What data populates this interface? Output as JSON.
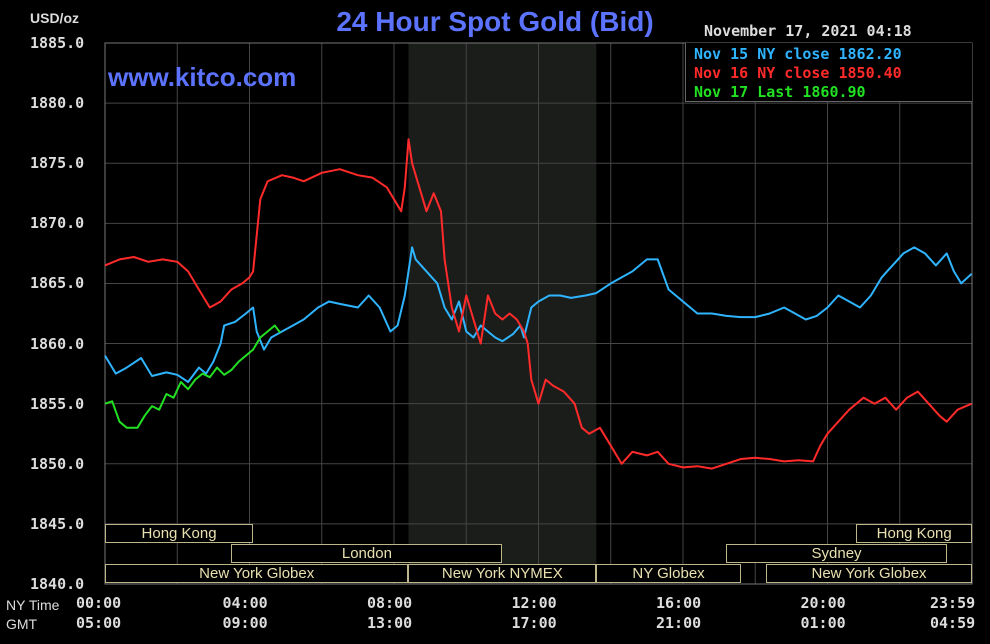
{
  "header": {
    "title": "24 Hour Spot Gold (Bid)",
    "site": "www.kitco.com",
    "unit": "USD/oz",
    "timestamp": "November 17, 2021 04:18"
  },
  "legend": {
    "items": [
      {
        "label": "Nov 15 NY close 1862.20",
        "color": "#2fb4ff"
      },
      {
        "label": "Nov 16 NY close 1850.40",
        "color": "#ff2a2a"
      },
      {
        "label": "Nov 17 Last 1860.90",
        "color": "#22e022"
      }
    ]
  },
  "axis_labels": {
    "ny_time": "NY Time",
    "gmt": "GMT"
  },
  "sessions": [
    {
      "label": "Hong Kong",
      "row": 0,
      "start": 0,
      "end": 4.1
    },
    {
      "label": "Hong Kong",
      "row": 0,
      "start": 20.8,
      "end": 24
    },
    {
      "label": "London",
      "row": 1,
      "start": 3.5,
      "end": 11
    },
    {
      "label": "Sydney",
      "row": 1,
      "start": 17.2,
      "end": 23.3
    },
    {
      "label": "New York Globex",
      "row": 2,
      "start": 0,
      "end": 8.4
    },
    {
      "label": "New York NYMEX",
      "row": 2,
      "start": 8.4,
      "end": 13.6
    },
    {
      "label": "NY Globex",
      "row": 2,
      "start": 13.6,
      "end": 17.6
    },
    {
      "label": "New York Globex",
      "row": 2,
      "start": 18.3,
      "end": 24
    }
  ],
  "chart_data": {
    "type": "line",
    "title": "24 Hour Spot Gold (Bid)",
    "ylabel": "USD/oz",
    "ylim": [
      1840,
      1885
    ],
    "yticks": [
      "1885.0",
      "1880.0",
      "1875.0",
      "1870.0",
      "1865.0",
      "1860.0",
      "1855.0",
      "1850.0",
      "1845.0",
      "1840.0"
    ],
    "x_range_hours": [
      0,
      24
    ],
    "xticks_ny": [
      "00:00",
      "04:00",
      "08:00",
      "12:00",
      "16:00",
      "20:00",
      "23:59"
    ],
    "xticks_gmt": [
      "05:00",
      "09:00",
      "13:00",
      "17:00",
      "21:00",
      "01:00",
      "04:59"
    ],
    "shaded_hours": [
      8.4,
      13.6
    ],
    "grid": true,
    "series": [
      {
        "name": "Nov 15 NY close 1862.20",
        "color": "#2fb4ff",
        "points": [
          [
            0,
            1859
          ],
          [
            0.3,
            1857.5
          ],
          [
            0.6,
            1858
          ],
          [
            1,
            1858.8
          ],
          [
            1.3,
            1857.3
          ],
          [
            1.7,
            1857.6
          ],
          [
            2,
            1857.4
          ],
          [
            2.3,
            1856.8
          ],
          [
            2.6,
            1858
          ],
          [
            2.8,
            1857.5
          ],
          [
            3,
            1858.5
          ],
          [
            3.2,
            1860
          ],
          [
            3.3,
            1861.5
          ],
          [
            3.6,
            1861.8
          ],
          [
            3.9,
            1862.5
          ],
          [
            4.1,
            1863
          ],
          [
            4.2,
            1861
          ],
          [
            4.4,
            1859.5
          ],
          [
            4.6,
            1860.5
          ],
          [
            4.9,
            1861
          ],
          [
            5.2,
            1861.5
          ],
          [
            5.5,
            1862
          ],
          [
            5.9,
            1863
          ],
          [
            6.2,
            1863.5
          ],
          [
            6.5,
            1863.3
          ],
          [
            7,
            1863
          ],
          [
            7.3,
            1864
          ],
          [
            7.6,
            1863
          ],
          [
            7.9,
            1861
          ],
          [
            8.1,
            1861.5
          ],
          [
            8.3,
            1864
          ],
          [
            8.4,
            1866
          ],
          [
            8.5,
            1868
          ],
          [
            8.6,
            1867
          ],
          [
            8.9,
            1866
          ],
          [
            9.2,
            1865
          ],
          [
            9.4,
            1863
          ],
          [
            9.6,
            1862
          ],
          [
            9.8,
            1863.5
          ],
          [
            10,
            1861
          ],
          [
            10.2,
            1860.5
          ],
          [
            10.4,
            1861.5
          ],
          [
            10.6,
            1861
          ],
          [
            10.8,
            1860.5
          ],
          [
            11,
            1860.2
          ],
          [
            11.3,
            1860.8
          ],
          [
            11.5,
            1861.5
          ],
          [
            11.6,
            1860.5
          ],
          [
            11.8,
            1863
          ],
          [
            12,
            1863.5
          ],
          [
            12.3,
            1864
          ],
          [
            12.6,
            1864
          ],
          [
            12.9,
            1863.8
          ],
          [
            13.3,
            1864
          ],
          [
            13.6,
            1864.2
          ],
          [
            14,
            1865
          ],
          [
            14.3,
            1865.5
          ],
          [
            14.6,
            1866
          ],
          [
            15,
            1867
          ],
          [
            15.3,
            1867
          ],
          [
            15.6,
            1864.5
          ],
          [
            16,
            1863.5
          ],
          [
            16.4,
            1862.5
          ],
          [
            16.8,
            1862.5
          ],
          [
            17.2,
            1862.3
          ],
          [
            17.6,
            1862.2
          ],
          [
            18,
            1862.2
          ],
          [
            18.4,
            1862.5
          ],
          [
            18.8,
            1863
          ],
          [
            19.1,
            1862.5
          ],
          [
            19.4,
            1862
          ],
          [
            19.7,
            1862.3
          ],
          [
            20,
            1863
          ],
          [
            20.3,
            1864
          ],
          [
            20.6,
            1863.5
          ],
          [
            20.9,
            1863
          ],
          [
            21.2,
            1864
          ],
          [
            21.5,
            1865.5
          ],
          [
            21.8,
            1866.5
          ],
          [
            22.1,
            1867.5
          ],
          [
            22.4,
            1868
          ],
          [
            22.7,
            1867.5
          ],
          [
            23,
            1866.5
          ],
          [
            23.3,
            1867.5
          ],
          [
            23.5,
            1866
          ],
          [
            23.7,
            1865
          ],
          [
            23.99,
            1865.8
          ]
        ]
      },
      {
        "name": "Nov 16 NY close 1850.40",
        "color": "#ff2a2a",
        "points": [
          [
            0,
            1866.5
          ],
          [
            0.4,
            1867
          ],
          [
            0.8,
            1867.2
          ],
          [
            1.2,
            1866.8
          ],
          [
            1.6,
            1867
          ],
          [
            2,
            1866.8
          ],
          [
            2.3,
            1866
          ],
          [
            2.6,
            1864.5
          ],
          [
            2.9,
            1863
          ],
          [
            3.2,
            1863.5
          ],
          [
            3.5,
            1864.5
          ],
          [
            3.8,
            1865
          ],
          [
            4,
            1865.5
          ],
          [
            4.1,
            1866
          ],
          [
            4.2,
            1869
          ],
          [
            4.3,
            1872
          ],
          [
            4.5,
            1873.5
          ],
          [
            4.9,
            1874
          ],
          [
            5.2,
            1873.8
          ],
          [
            5.5,
            1873.5
          ],
          [
            6,
            1874.2
          ],
          [
            6.5,
            1874.5
          ],
          [
            7,
            1874
          ],
          [
            7.4,
            1873.8
          ],
          [
            7.8,
            1873
          ],
          [
            8,
            1872
          ],
          [
            8.2,
            1871
          ],
          [
            8.3,
            1873
          ],
          [
            8.4,
            1877
          ],
          [
            8.5,
            1875
          ],
          [
            8.7,
            1873
          ],
          [
            8.9,
            1871
          ],
          [
            9.1,
            1872.5
          ],
          [
            9.3,
            1871
          ],
          [
            9.4,
            1867
          ],
          [
            9.6,
            1863
          ],
          [
            9.8,
            1861
          ],
          [
            10,
            1864
          ],
          [
            10.2,
            1862
          ],
          [
            10.4,
            1860
          ],
          [
            10.6,
            1864
          ],
          [
            10.8,
            1862.5
          ],
          [
            11,
            1862
          ],
          [
            11.2,
            1862.5
          ],
          [
            11.4,
            1862
          ],
          [
            11.6,
            1861
          ],
          [
            11.7,
            1860
          ],
          [
            11.8,
            1857
          ],
          [
            12,
            1855
          ],
          [
            12.2,
            1857
          ],
          [
            12.4,
            1856.5
          ],
          [
            12.7,
            1856
          ],
          [
            13,
            1855
          ],
          [
            13.2,
            1853
          ],
          [
            13.4,
            1852.5
          ],
          [
            13.7,
            1853
          ],
          [
            14,
            1851.5
          ],
          [
            14.3,
            1850
          ],
          [
            14.6,
            1851
          ],
          [
            15,
            1850.7
          ],
          [
            15.3,
            1851
          ],
          [
            15.6,
            1850
          ],
          [
            16,
            1849.7
          ],
          [
            16.4,
            1849.8
          ],
          [
            16.8,
            1849.6
          ],
          [
            17.2,
            1850
          ],
          [
            17.6,
            1850.4
          ],
          [
            18,
            1850.5
          ],
          [
            18.4,
            1850.4
          ],
          [
            18.8,
            1850.2
          ],
          [
            19.2,
            1850.3
          ],
          [
            19.6,
            1850.2
          ],
          [
            19.8,
            1851.5
          ],
          [
            20,
            1852.5
          ],
          [
            20.3,
            1853.5
          ],
          [
            20.6,
            1854.5
          ],
          [
            21,
            1855.5
          ],
          [
            21.3,
            1855
          ],
          [
            21.6,
            1855.5
          ],
          [
            21.9,
            1854.5
          ],
          [
            22.2,
            1855.5
          ],
          [
            22.5,
            1856
          ],
          [
            22.8,
            1855
          ],
          [
            23.1,
            1854
          ],
          [
            23.3,
            1853.5
          ],
          [
            23.6,
            1854.5
          ],
          [
            23.99,
            1855
          ]
        ]
      },
      {
        "name": "Nov 17 Last 1860.90",
        "color": "#22e022",
        "points": [
          [
            0,
            1855
          ],
          [
            0.2,
            1855.2
          ],
          [
            0.4,
            1853.5
          ],
          [
            0.6,
            1853
          ],
          [
            0.9,
            1853
          ],
          [
            1.1,
            1854
          ],
          [
            1.3,
            1854.8
          ],
          [
            1.5,
            1854.5
          ],
          [
            1.7,
            1855.8
          ],
          [
            1.9,
            1855.5
          ],
          [
            2.1,
            1856.8
          ],
          [
            2.3,
            1856.2
          ],
          [
            2.5,
            1857
          ],
          [
            2.7,
            1857.5
          ],
          [
            2.9,
            1857.2
          ],
          [
            3.1,
            1858
          ],
          [
            3.3,
            1857.4
          ],
          [
            3.5,
            1857.8
          ],
          [
            3.7,
            1858.5
          ],
          [
            3.9,
            1859
          ],
          [
            4.1,
            1859.5
          ],
          [
            4.3,
            1860.5
          ],
          [
            4.5,
            1861
          ],
          [
            4.7,
            1861.5
          ],
          [
            4.85,
            1860.9
          ]
        ]
      }
    ]
  }
}
